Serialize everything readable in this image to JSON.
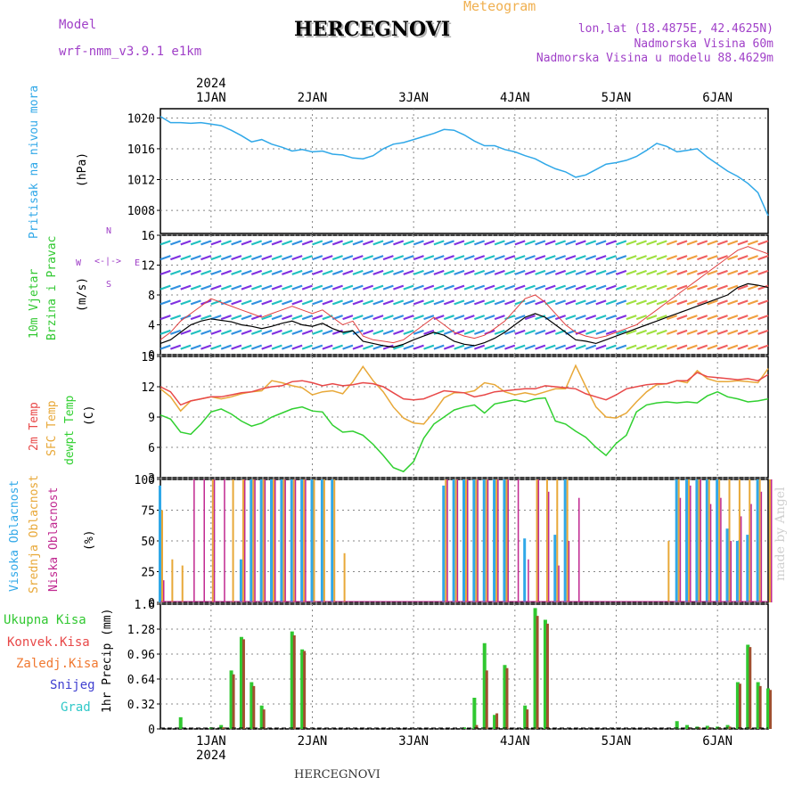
{
  "header": {
    "model_label": "Model",
    "model_name": "wrf-nmm_v3.9.1 e1km",
    "title": "HERCEGNOVI",
    "meteogram": "Meteogram",
    "lonlat": "lon,lat (18.4875E, 42.4625N)",
    "elevation": "Nadmorska Visina 60m",
    "model_elevation": "Nadmorska Visina u modelu 88.4629m",
    "credit": "made by Angel",
    "footer": "HERCEGNOVI"
  },
  "colors": {
    "pressure": "#30a8e8",
    "t2m": "#e84848",
    "sfc": "#e8a838",
    "dewpt": "#30d030",
    "high_cloud": "#30a8e8",
    "mid_cloud": "#e8a838",
    "low_cloud": "#c02890",
    "total_precip": "#30c830",
    "conv_precip": "#a05030"
  },
  "chart_data": [
    {
      "panel": "pressure",
      "type": "line",
      "top_year": "2024",
      "x_labels": [
        "1JAN",
        "2JAN",
        "3JAN",
        "4JAN",
        "5JAN",
        "6JAN"
      ],
      "ylabel_a": "Pritisak na nivou mora",
      "ylabel_b": "(hPa)",
      "y_ticks": [
        1008,
        1012,
        1016,
        1020
      ],
      "ylim": [
        1005,
        1021.2
      ],
      "xlim": [
        -0.5,
        5.5
      ],
      "x": [
        -0.5,
        -0.4,
        -0.3,
        -0.2,
        -0.1,
        0,
        0.1,
        0.2,
        0.3,
        0.4,
        0.5,
        0.6,
        0.7,
        0.8,
        0.9,
        1.0,
        1.1,
        1.2,
        1.3,
        1.4,
        1.5,
        1.6,
        1.7,
        1.8,
        1.9,
        2.0,
        2.1,
        2.2,
        2.3,
        2.4,
        2.5,
        2.6,
        2.7,
        2.8,
        2.9,
        3.0,
        3.1,
        3.2,
        3.3,
        3.4,
        3.5,
        3.6,
        3.7,
        3.8,
        3.9,
        4.0,
        4.1,
        4.2,
        4.3,
        4.4,
        4.5,
        4.6,
        4.7,
        4.8,
        4.9,
        5.0,
        5.1,
        5.2,
        5.3,
        5.4,
        5.5
      ],
      "series": [
        {
          "values": [
            1020.2,
            1019.4,
            1019.4,
            1019.3,
            1019.4,
            1019.2,
            1019.0,
            1018.4,
            1017.7,
            1016.9,
            1017.2,
            1016.6,
            1016.2,
            1015.7,
            1015.9,
            1015.6,
            1015.7,
            1015.3,
            1015.2,
            1014.8,
            1014.7,
            1015.1,
            1016.0,
            1016.6,
            1016.8,
            1017.2,
            1017.6,
            1018.0,
            1018.5,
            1018.4,
            1017.8,
            1017.0,
            1016.4,
            1016.4,
            1015.9,
            1015.6,
            1015.1,
            1014.7,
            1014.0,
            1013.4,
            1013.0,
            1012.3,
            1012.6,
            1013.3,
            1014.0,
            1014.2,
            1014.5,
            1015.0,
            1015.8,
            1016.7,
            1016.3,
            1015.6,
            1015.8,
            1016.0,
            1014.9,
            1014.0,
            1013.1,
            1012.4,
            1011.5,
            1010.3,
            1007.3
          ]
        }
      ]
    },
    {
      "panel": "wind",
      "type": "line",
      "ylabel_a": "10m Vjetar",
      "ylabel_b": "Brzina i Pravac",
      "ylabel_c": "(m/s)",
      "compass": [
        "N",
        "S",
        "W",
        "E",
        "<-|->"
      ],
      "y_ticks": [
        0,
        4,
        8,
        12,
        16
      ],
      "ylim": [
        0,
        16
      ],
      "xlim": [
        -0.5,
        5.5
      ],
      "x": [
        -0.5,
        -0.4,
        -0.3,
        -0.2,
        -0.1,
        0,
        0.1,
        0.2,
        0.3,
        0.4,
        0.5,
        0.6,
        0.7,
        0.8,
        0.9,
        1.0,
        1.1,
        1.2,
        1.3,
        1.4,
        1.5,
        1.6,
        1.7,
        1.8,
        1.9,
        2.0,
        2.1,
        2.2,
        2.3,
        2.4,
        2.5,
        2.6,
        2.7,
        2.8,
        2.9,
        3.0,
        3.1,
        3.2,
        3.3,
        3.4,
        3.5,
        3.6,
        3.7,
        3.8,
        3.9,
        4.0,
        4.1,
        4.2,
        4.3,
        4.4,
        4.5,
        4.6,
        4.7,
        4.8,
        4.9,
        5.0,
        5.1,
        5.2,
        5.3,
        5.4,
        5.5
      ],
      "series": [
        {
          "name": "speed",
          "values": [
            1.5,
            2.0,
            3.0,
            4.0,
            4.5,
            4.8,
            4.6,
            4.4,
            4.0,
            3.8,
            3.5,
            3.8,
            4.2,
            4.5,
            4.0,
            3.8,
            4.2,
            3.5,
            3.0,
            3.2,
            1.8,
            1.5,
            1.2,
            1.0,
            1.4,
            2.0,
            2.5,
            3.0,
            2.6,
            1.8,
            1.4,
            1.2,
            1.6,
            2.2,
            3.0,
            4.0,
            5.0,
            5.5,
            5.0,
            4.0,
            3.0,
            2.0,
            1.8,
            1.5,
            2.0,
            2.5,
            3.0,
            3.5,
            4.0,
            4.5,
            5.0,
            5.5,
            6.0,
            6.5,
            7.0,
            7.5,
            8.0,
            9.0,
            9.5,
            9.3,
            9.0
          ]
        },
        {
          "name": "gust",
          "values": [
            2.0,
            3.0,
            4.5,
            5.5,
            6.5,
            7.5,
            7.0,
            6.5,
            6.0,
            5.5,
            5.0,
            5.5,
            6.0,
            6.5,
            6.0,
            5.5,
            6.0,
            5.0,
            4.0,
            4.5,
            2.5,
            2.0,
            1.8,
            1.6,
            2.0,
            3.0,
            4.0,
            5.0,
            4.0,
            3.0,
            2.5,
            2.2,
            2.6,
            3.5,
            4.5,
            6.0,
            7.5,
            8.0,
            7.0,
            5.5,
            4.0,
            3.0,
            2.5,
            2.2,
            2.5,
            3.0,
            3.5,
            4.0,
            5.0,
            6.0,
            7.0,
            8.0,
            9.0,
            10.0,
            11.0,
            12.0,
            13.0,
            14.0,
            14.5,
            14.0,
            13.5
          ]
        }
      ]
    },
    {
      "panel": "temperature",
      "type": "line",
      "ylabel_a": "2m Temp",
      "ylabel_b": "SFC Temp",
      "ylabel_c": "dewpt Temp",
      "ylabel_d": "(C)",
      "y_ticks": [
        3,
        6,
        9,
        12,
        15
      ],
      "ylim": [
        3,
        15
      ],
      "xlim": [
        -0.5,
        5.5
      ],
      "x": [
        -0.5,
        -0.4,
        -0.3,
        -0.2,
        -0.1,
        0,
        0.1,
        0.2,
        0.3,
        0.4,
        0.5,
        0.6,
        0.7,
        0.8,
        0.9,
        1.0,
        1.1,
        1.2,
        1.3,
        1.4,
        1.5,
        1.6,
        1.7,
        1.8,
        1.9,
        2.0,
        2.1,
        2.2,
        2.3,
        2.4,
        2.5,
        2.6,
        2.7,
        2.8,
        2.9,
        3.0,
        3.1,
        3.2,
        3.3,
        3.4,
        3.5,
        3.6,
        3.7,
        3.8,
        3.9,
        4.0,
        4.1,
        4.2,
        4.3,
        4.4,
        4.5,
        4.6,
        4.7,
        4.8,
        4.9,
        5.0,
        5.1,
        5.2,
        5.3,
        5.4,
        5.5
      ],
      "series": [
        {
          "name": "2m Temp",
          "values": [
            12.0,
            11.5,
            10.2,
            10.6,
            10.8,
            11.0,
            11.0,
            11.2,
            11.4,
            11.5,
            11.8,
            12.0,
            12.1,
            12.5,
            12.6,
            12.4,
            12.1,
            12.3,
            12.1,
            12.2,
            12.4,
            12.3,
            12.0,
            11.4,
            10.8,
            10.7,
            10.8,
            11.2,
            11.6,
            11.5,
            11.4,
            11.0,
            11.2,
            11.5,
            11.6,
            11.7,
            11.8,
            11.8,
            12.1,
            12.0,
            11.9,
            11.8,
            11.3,
            11.0,
            10.7,
            11.2,
            11.8,
            12.0,
            12.2,
            12.3,
            12.3,
            12.6,
            12.6,
            13.4,
            13.0,
            12.9,
            12.8,
            12.7,
            12.8,
            12.6,
            13.2
          ]
        },
        {
          "name": "SFC Temp",
          "values": [
            11.8,
            11.0,
            9.6,
            10.6,
            10.8,
            11.0,
            10.8,
            11.0,
            11.3,
            11.5,
            11.6,
            12.6,
            12.4,
            12.1,
            11.9,
            11.2,
            11.5,
            11.6,
            11.3,
            12.5,
            14.0,
            12.6,
            11.5,
            10.0,
            8.9,
            8.4,
            8.3,
            9.5,
            10.9,
            11.4,
            11.4,
            11.6,
            12.4,
            12.2,
            11.5,
            11.2,
            11.4,
            11.2,
            11.5,
            11.8,
            11.8,
            14.1,
            12.0,
            10.0,
            9.0,
            8.9,
            9.4,
            10.5,
            11.5,
            12.2,
            12.3,
            12.6,
            12.4,
            13.6,
            12.8,
            12.5,
            12.5,
            12.6,
            12.5,
            12.4,
            13.8
          ]
        },
        {
          "name": "dewpt Temp",
          "values": [
            9.2,
            8.8,
            7.5,
            7.3,
            8.3,
            9.5,
            9.8,
            9.3,
            8.6,
            8.1,
            8.4,
            9.0,
            9.4,
            9.8,
            10.0,
            9.6,
            9.5,
            8.2,
            7.5,
            7.6,
            7.2,
            6.3,
            5.2,
            4.0,
            3.6,
            4.6,
            6.9,
            8.3,
            9.0,
            9.7,
            10.0,
            10.2,
            9.4,
            10.3,
            10.5,
            10.7,
            10.5,
            10.8,
            10.9,
            8.6,
            8.3,
            7.6,
            7.0,
            6.0,
            5.2,
            6.4,
            7.2,
            9.5,
            10.2,
            10.4,
            10.5,
            10.4,
            10.5,
            10.4,
            11.1,
            11.5,
            11.0,
            10.8,
            10.5,
            10.6,
            10.8
          ]
        }
      ]
    },
    {
      "panel": "cloud",
      "type": "bar",
      "ylabel_a": "Visoka Oblacnost",
      "ylabel_b": "Srednja Oblacnost",
      "ylabel_c": "Niska Oblacnost",
      "ylabel_d": "(%)",
      "y_ticks": [
        0,
        25,
        50,
        75,
        100
      ],
      "ylim": [
        0,
        100
      ],
      "xlim": [
        -0.5,
        5.5
      ],
      "x": [
        -0.5,
        -0.4,
        -0.3,
        -0.2,
        -0.1,
        0,
        0.1,
        0.2,
        0.3,
        0.4,
        0.5,
        0.6,
        0.7,
        0.8,
        0.9,
        1.0,
        1.1,
        1.2,
        1.3,
        1.4,
        1.5,
        1.6,
        1.7,
        1.8,
        1.9,
        2.0,
        2.1,
        2.2,
        2.3,
        2.4,
        2.5,
        2.6,
        2.7,
        2.8,
        2.9,
        3.0,
        3.1,
        3.2,
        3.3,
        3.4,
        3.5,
        3.6,
        3.7,
        3.8,
        3.9,
        4.0,
        4.1,
        4.2,
        4.3,
        4.4,
        4.5,
        4.6,
        4.7,
        4.8,
        4.9,
        5.0,
        5.1,
        5.2,
        5.3,
        5.4,
        5.5
      ],
      "series": [
        {
          "name": "Visoka Oblacnost",
          "values": [
            95,
            0,
            0,
            0,
            0,
            0,
            0,
            0,
            35,
            100,
            100,
            100,
            100,
            100,
            100,
            100,
            100,
            100,
            0,
            0,
            0,
            0,
            0,
            0,
            0,
            0,
            0,
            0,
            95,
            100,
            100,
            100,
            100,
            100,
            100,
            0,
            52,
            0,
            0,
            55,
            100,
            0,
            0,
            0,
            0,
            0,
            0,
            0,
            0,
            0,
            0,
            100,
            100,
            100,
            100,
            100,
            60,
            50,
            55,
            100,
            0
          ]
        },
        {
          "name": "Srednja Oblacnost",
          "values": [
            75,
            35,
            30,
            0,
            0,
            100,
            0,
            100,
            100,
            100,
            100,
            100,
            100,
            100,
            100,
            100,
            100,
            100,
            40,
            0,
            0,
            0,
            0,
            0,
            0,
            0,
            0,
            0,
            100,
            100,
            100,
            100,
            100,
            100,
            100,
            0,
            0,
            100,
            100,
            100,
            100,
            0,
            0,
            0,
            0,
            0,
            0,
            0,
            0,
            0,
            50,
            100,
            100,
            100,
            100,
            100,
            100,
            100,
            100,
            100,
            100
          ]
        },
        {
          "name": "Niska Oblacnost",
          "values": [
            18,
            0,
            0,
            100,
            100,
            100,
            100,
            0,
            100,
            100,
            100,
            100,
            100,
            100,
            100,
            0,
            0,
            0,
            0,
            0,
            0,
            0,
            0,
            0,
            0,
            0,
            0,
            0,
            100,
            100,
            100,
            100,
            100,
            100,
            100,
            100,
            35,
            100,
            90,
            30,
            50,
            85,
            0,
            0,
            0,
            0,
            0,
            0,
            0,
            0,
            0,
            85,
            95,
            100,
            80,
            85,
            50,
            70,
            80,
            90,
            100
          ]
        }
      ]
    },
    {
      "panel": "precip",
      "type": "bar",
      "ylabel_a": "Ukupna Kisa",
      "ylabel_b": "Konvek.Kisa",
      "ylabel_c": "Zaledj.Kisa",
      "ylabel_d": "Snijeg",
      "ylabel_e": "Grad",
      "ylabel_f": "1hr Precip (mm)",
      "bottom_year": "2024",
      "x_labels": [
        "1JAN",
        "2JAN",
        "3JAN",
        "4JAN",
        "5JAN",
        "6JAN"
      ],
      "y_ticks": [
        0,
        0.32,
        0.64,
        0.96,
        1.28,
        1.6
      ],
      "ylim": [
        0,
        1.6
      ],
      "xlim": [
        -0.5,
        5.5
      ],
      "x": [
        -0.5,
        -0.4,
        -0.3,
        -0.2,
        -0.1,
        0,
        0.1,
        0.2,
        0.3,
        0.4,
        0.5,
        0.6,
        0.7,
        0.8,
        0.9,
        1.0,
        1.1,
        1.2,
        1.3,
        1.4,
        1.5,
        1.6,
        1.7,
        1.8,
        1.9,
        2.0,
        2.1,
        2.2,
        2.3,
        2.4,
        2.5,
        2.6,
        2.7,
        2.8,
        2.9,
        3.0,
        3.1,
        3.2,
        3.3,
        3.4,
        3.5,
        3.6,
        3.7,
        3.8,
        3.9,
        4.0,
        4.1,
        4.2,
        4.3,
        4.4,
        4.5,
        4.6,
        4.7,
        4.8,
        4.9,
        5.0,
        5.1,
        5.2,
        5.3,
        5.4,
        5.5
      ],
      "series": [
        {
          "name": "Ukupna Kisa",
          "values": [
            0,
            0,
            0.15,
            0,
            0,
            0.02,
            0.05,
            0.75,
            1.18,
            0.6,
            0.3,
            0,
            0,
            1.25,
            1.02,
            0,
            0,
            0,
            0,
            0,
            0,
            0,
            0,
            0,
            0,
            0,
            0,
            0,
            0,
            0,
            0.02,
            0.4,
            1.1,
            0.18,
            0.82,
            0,
            0.3,
            1.55,
            1.4,
            0,
            0,
            0,
            0,
            0,
            0,
            0,
            0,
            0,
            0,
            0,
            0,
            0.1,
            0.05,
            0.03,
            0.04,
            0.03,
            0.05,
            0.6,
            1.08,
            0.6,
            0.52
          ]
        },
        {
          "name": "Konvek.Kisa",
          "values": [
            0,
            0,
            0,
            0,
            0,
            0,
            0.02,
            0.7,
            1.15,
            0.55,
            0.25,
            0,
            0,
            1.2,
            1.0,
            0,
            0,
            0,
            0,
            0,
            0,
            0,
            0,
            0,
            0,
            0,
            0,
            0,
            0,
            0,
            0,
            0.05,
            0.75,
            0.2,
            0.78,
            0,
            0.25,
            1.45,
            1.35,
            0,
            0,
            0,
            0,
            0,
            0,
            0,
            0,
            0,
            0,
            0,
            0,
            0,
            0.02,
            0.02,
            0.02,
            0.02,
            0.03,
            0.58,
            1.05,
            0.55,
            0.5
          ]
        }
      ]
    }
  ]
}
